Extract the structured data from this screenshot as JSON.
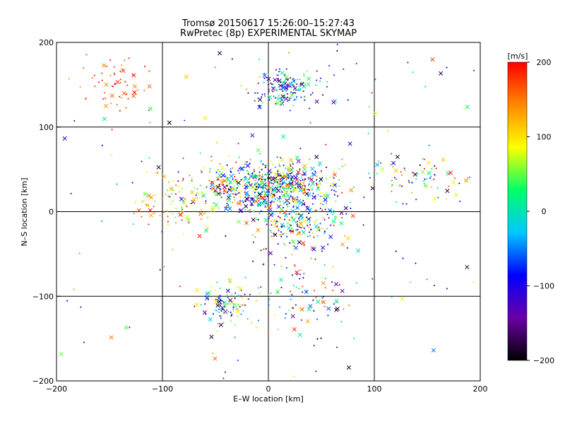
{
  "chart_data": {
    "type": "scatter",
    "title": "Tromsø 20150617 15:26:00–15:27:43",
    "subtitle": "RwPretec (8p) EXPERIMENTAL SKYMAP",
    "xlabel": "E–W location [km]",
    "ylabel": "N–S location [km]",
    "xlim": [
      -200,
      200
    ],
    "ylim": [
      -200,
      200
    ],
    "xticks": [
      -200,
      -100,
      0,
      100,
      200
    ],
    "yticks": [
      -200,
      -100,
      0,
      100,
      200
    ],
    "x_tick_labels": [
      "−200",
      "−100",
      "0",
      "100",
      "200"
    ],
    "y_tick_labels": [
      "−200",
      "−100",
      "0",
      "100",
      "200"
    ],
    "grid": true,
    "markers": [
      "x (cross)",
      "+ (small plus)"
    ],
    "colorbar": {
      "label": "[m/s]",
      "range": [
        -200,
        200
      ],
      "ticks": [
        200,
        100,
        0,
        -100,
        -200
      ],
      "tick_labels": [
        "200",
        "100",
        "0",
        "−100",
        "−200"
      ],
      "colormap": [
        "#000000",
        "#6a00a8",
        "#0000ff",
        "#00c8ff",
        "#00ff66",
        "#ffff00",
        "#ff8800",
        "#ff0000"
      ]
    },
    "clusters": [
      {
        "center": [
          -145,
          150
        ],
        "spread": [
          28,
          28
        ],
        "count": 60,
        "velocity_range": [
          130,
          200
        ]
      },
      {
        "center": [
          20,
          145
        ],
        "spread": [
          30,
          20
        ],
        "count": 160,
        "velocity_range": [
          -200,
          60
        ]
      },
      {
        "center": [
          0,
          30
        ],
        "spread": [
          55,
          25
        ],
        "count": 720,
        "velocity_range": [
          -200,
          200
        ]
      },
      {
        "center": [
          30,
          -15
        ],
        "spread": [
          40,
          25
        ],
        "count": 200,
        "velocity_range": [
          -200,
          200
        ]
      },
      {
        "center": [
          -35,
          -110
        ],
        "spread": [
          25,
          20
        ],
        "count": 110,
        "velocity_range": [
          -200,
          120
        ]
      },
      {
        "center": [
          35,
          -95
        ],
        "spread": [
          35,
          40
        ],
        "count": 90,
        "velocity_range": [
          -200,
          200
        ]
      },
      {
        "center": [
          140,
          40
        ],
        "spread": [
          35,
          20
        ],
        "count": 70,
        "velocity_range": [
          -200,
          200
        ]
      },
      {
        "center": [
          -80,
          10
        ],
        "spread": [
          40,
          25
        ],
        "count": 90,
        "velocity_range": [
          40,
          200
        ]
      },
      {
        "center": [
          0,
          0
        ],
        "spread": [
          200,
          200
        ],
        "count": 140,
        "velocity_range": [
          -200,
          200
        ]
      }
    ]
  }
}
